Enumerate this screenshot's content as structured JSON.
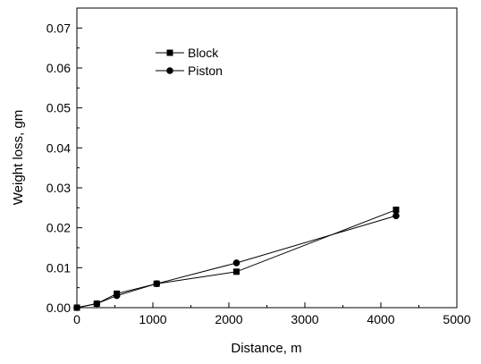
{
  "chart_data": {
    "type": "line",
    "title": "",
    "xlabel": "Distance, m",
    "ylabel": "Weight loss, gm",
    "xlim": [
      0,
      5000
    ],
    "ylim": [
      0,
      0.075
    ],
    "x_ticks": [
      0,
      1000,
      2000,
      3000,
      4000,
      5000
    ],
    "x_tick_labels": [
      "0",
      "1000",
      "2000",
      "3000",
      "4000",
      "5000"
    ],
    "y_ticks": [
      0,
      0.01,
      0.02,
      0.03,
      0.04,
      0.05,
      0.06,
      0.07
    ],
    "y_tick_labels": [
      "0.00",
      "0.01",
      "0.02",
      "0.03",
      "0.04",
      "0.05",
      "0.06",
      "0.07"
    ],
    "grid": false,
    "legend_position": "top-left",
    "series": [
      {
        "name": "Block",
        "marker": "square",
        "color": "#000000",
        "points": [
          {
            "x": 0,
            "y": 0.0
          },
          {
            "x": 262,
            "y": 0.001
          },
          {
            "x": 525,
            "y": 0.0035
          },
          {
            "x": 1050,
            "y": 0.006
          },
          {
            "x": 2100,
            "y": 0.009
          },
          {
            "x": 4200,
            "y": 0.0245
          }
        ]
      },
      {
        "name": "Piston",
        "marker": "circle",
        "color": "#000000",
        "points": [
          {
            "x": 0,
            "y": 0.0
          },
          {
            "x": 262,
            "y": 0.001
          },
          {
            "x": 525,
            "y": 0.003
          },
          {
            "x": 1050,
            "y": 0.006
          },
          {
            "x": 2100,
            "y": 0.0112
          },
          {
            "x": 4200,
            "y": 0.023
          }
        ]
      }
    ]
  }
}
